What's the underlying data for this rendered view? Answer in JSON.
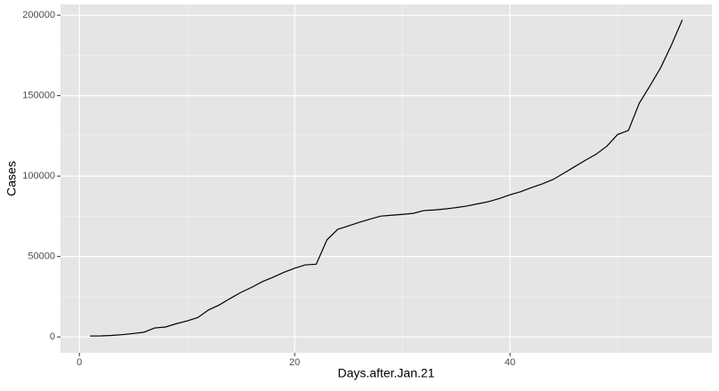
{
  "chart_data": {
    "type": "line",
    "x_label": "Days.after.Jan.21",
    "y_label": "Cases",
    "x": [
      1,
      2,
      3,
      4,
      5,
      6,
      7,
      8,
      9,
      10,
      11,
      12,
      13,
      14,
      15,
      16,
      17,
      18,
      19,
      20,
      21,
      22,
      23,
      24,
      25,
      26,
      27,
      28,
      29,
      30,
      31,
      32,
      33,
      34,
      35,
      36,
      37,
      38,
      39,
      40,
      41,
      42,
      43,
      44,
      45,
      46,
      47,
      48,
      49,
      50,
      51,
      52,
      53,
      54,
      55,
      56
    ],
    "series": [
      {
        "name": "Cases",
        "color": "#000000",
        "values": [
          555,
          654,
          941,
          1434,
          2118,
          2927,
          5578,
          6166,
          8234,
          9927,
          12038,
          16787,
          19881,
          23892,
          27635,
          30817,
          34391,
          37120,
          40150,
          42762,
          44802,
          45221,
          60368,
          66885,
          69030,
          71224,
          73258,
          75136,
          75639,
          76197,
          76819,
          78572,
          78958,
          79561,
          80406,
          81388,
          82746,
          84112,
          86011,
          88369,
          90306,
          92840,
          95120,
          97886,
          101801,
          105847,
          109821,
          113590,
          118620,
          125875,
          128352,
          145205,
          156101,
          167454,
          181574,
          197102
        ]
      }
    ],
    "xlim": [
      -1.75,
      58.75
    ],
    "xticks": [
      0,
      20,
      40
    ],
    "xminor": [
      10,
      30,
      50
    ],
    "ylim": [
      -9850,
      206700
    ],
    "yticks": [
      0,
      50000,
      100000,
      150000,
      200000
    ],
    "yminor": [
      25000,
      75000,
      125000,
      175000
    ],
    "grid": true
  }
}
